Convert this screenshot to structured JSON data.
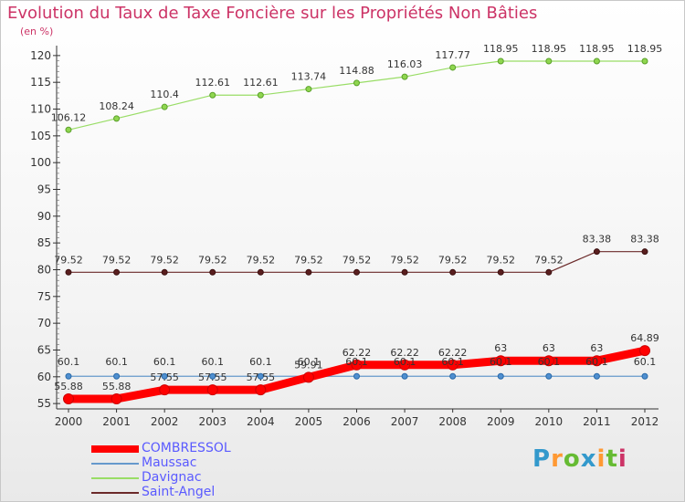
{
  "title": "Evolution du Taux de Taxe Foncière sur les Propriétés Non Bâties",
  "unit_label": "(en %)",
  "logo_text": "Proxiti",
  "chart_data": {
    "type": "line",
    "title": "Evolution du Taux de Taxe Foncière sur les Propriétés Non Bâties",
    "ylabel": "(en %)",
    "xlabel": "",
    "x": [
      "2000",
      "2001",
      "2002",
      "2003",
      "2004",
      "2005",
      "2006",
      "2007",
      "2008",
      "2009",
      "2010",
      "2011",
      "2012"
    ],
    "ylim": [
      54,
      121
    ],
    "yticks": [
      55,
      60,
      65,
      70,
      75,
      80,
      85,
      90,
      95,
      100,
      105,
      110,
      115,
      120
    ],
    "grid": false,
    "legend_position": "bottom-left",
    "series": [
      {
        "name": "COMBRESSOL",
        "color": "#ff0000",
        "values": [
          55.88,
          55.88,
          57.55,
          57.55,
          57.55,
          59.91,
          62.22,
          62.22,
          62.22,
          63,
          63,
          63,
          64.89
        ],
        "labels": [
          "55.88",
          "55.88",
          "57.55",
          "57.55",
          "57.55",
          "59.91",
          "62.22",
          "62.22",
          "62.22",
          "63",
          "63",
          "63",
          "64.89"
        ]
      },
      {
        "name": "Maussac",
        "color": "#6699cc",
        "values": [
          60.1,
          60.1,
          60.1,
          60.1,
          60.1,
          60.1,
          60.1,
          60.1,
          60.1,
          60.1,
          60.1,
          60.1,
          60.1
        ],
        "labels": [
          "60.1",
          "60.1",
          "60.1",
          "60.1",
          "60.1",
          "60.1",
          "60.1",
          "60.1",
          "60.1",
          "60.1",
          "60.1",
          "60.1",
          "60.1"
        ]
      },
      {
        "name": "Davignac",
        "color": "#99dd66",
        "values": [
          106.12,
          108.24,
          110.4,
          112.61,
          112.61,
          113.74,
          114.88,
          116.03,
          117.77,
          118.95,
          118.95,
          118.95,
          118.95
        ],
        "labels": [
          "106.12",
          "108.24",
          "110.4",
          "112.61",
          "112.61",
          "113.74",
          "114.88",
          "116.03",
          "117.77",
          "118.95",
          "118.95",
          "118.95",
          "118.95"
        ]
      },
      {
        "name": "Saint-Angel",
        "color": "#6b2a2a",
        "values": [
          79.52,
          79.52,
          79.52,
          79.52,
          79.52,
          79.52,
          79.52,
          79.52,
          79.52,
          79.52,
          79.52,
          83.38,
          83.38
        ],
        "labels": [
          "79.52",
          "79.52",
          "79.52",
          "79.52",
          "79.52",
          "79.52",
          "79.52",
          "79.52",
          "79.52",
          "79.52",
          "79.52",
          "83.38",
          "83.38"
        ]
      }
    ]
  }
}
